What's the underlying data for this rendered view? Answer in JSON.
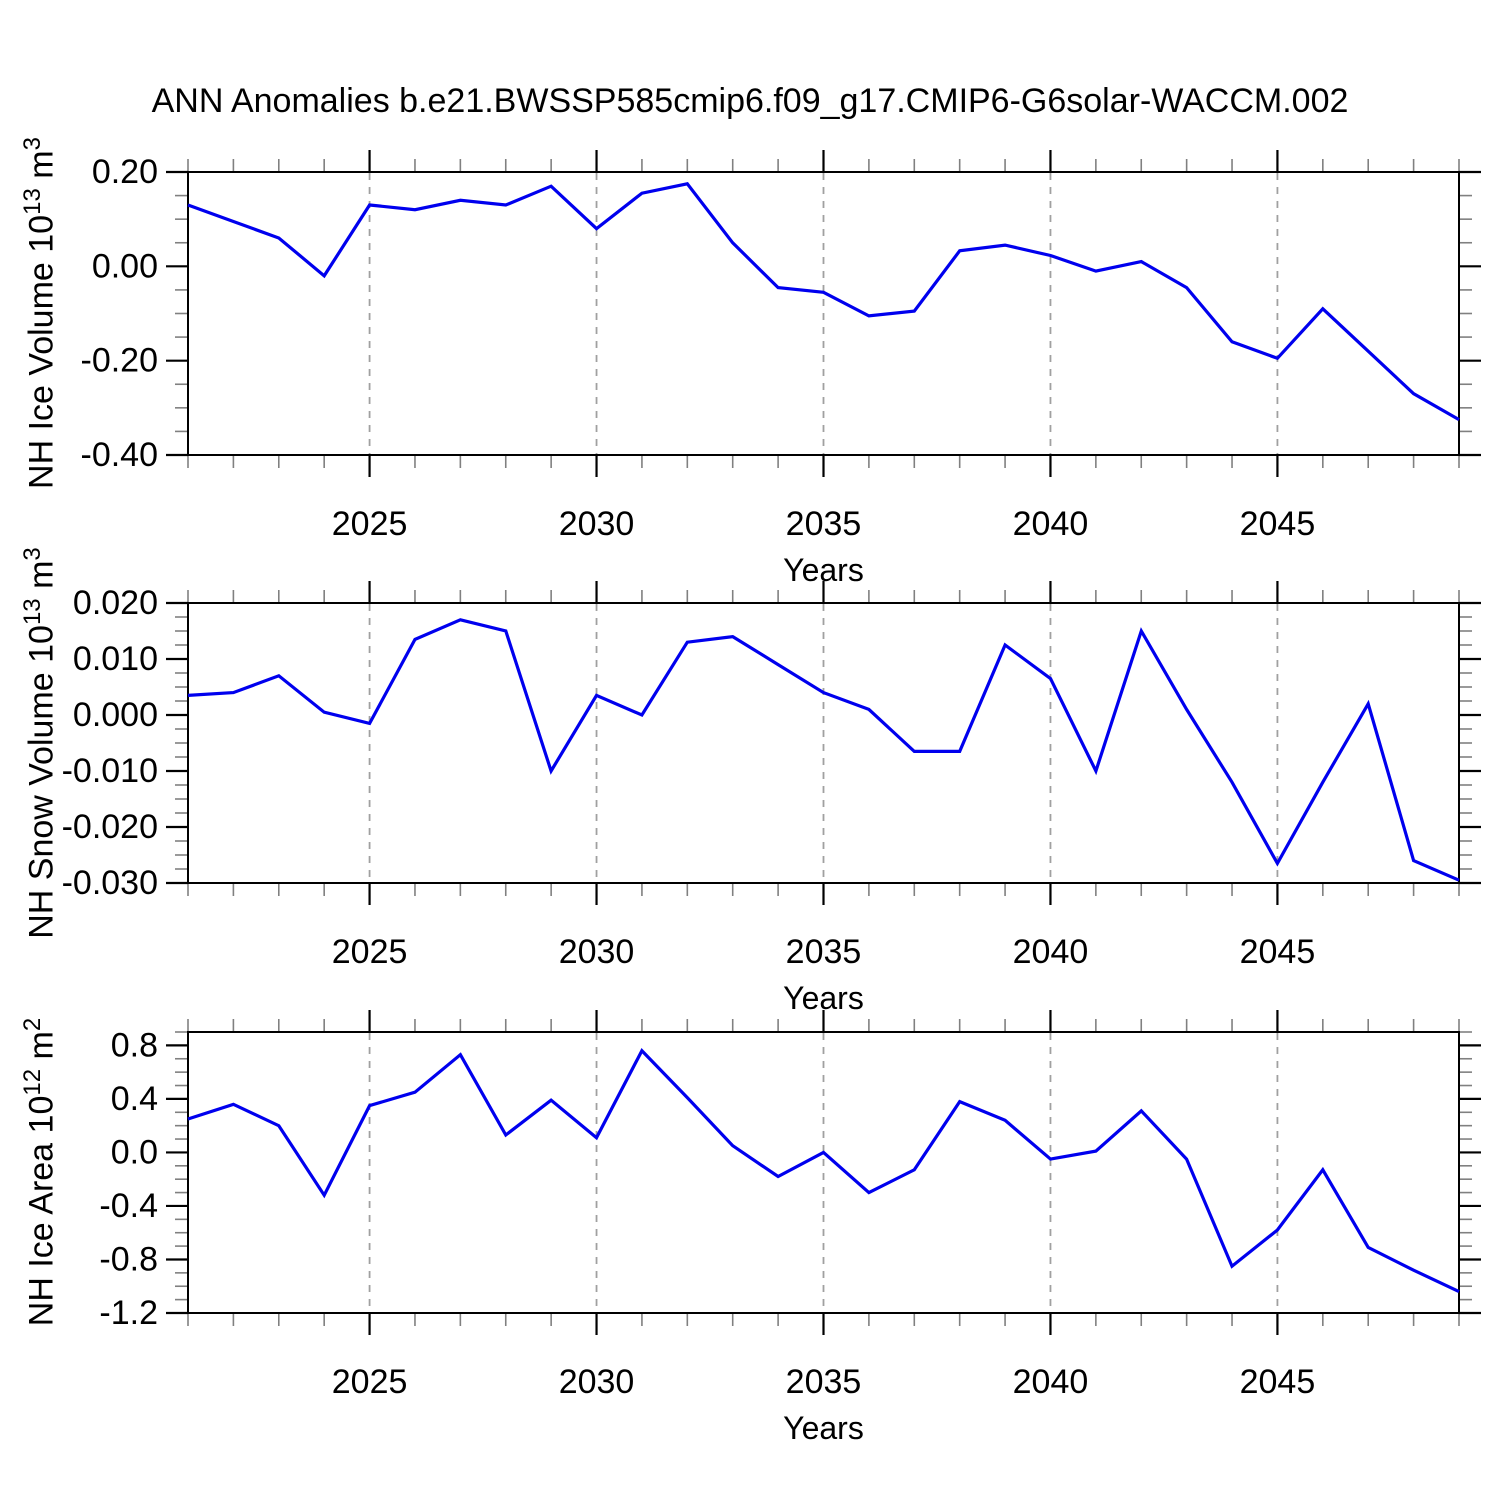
{
  "title": "ANN Anomalies b.e21.BWSSP585cmip6.f09_g17.CMIP6-G6solar-WACCM.002",
  "chart_data": {
    "type": "line",
    "title": "ANN Anomalies b.e21.BWSSP585cmip6.f09_g17.CMIP6-G6solar-WACCM.002",
    "xlabel": "Years",
    "x": [
      2021,
      2022,
      2023,
      2024,
      2025,
      2026,
      2027,
      2028,
      2029,
      2030,
      2031,
      2032,
      2033,
      2034,
      2035,
      2036,
      2037,
      2038,
      2039,
      2040,
      2041,
      2042,
      2043,
      2044,
      2045,
      2046,
      2047,
      2048,
      2049
    ],
    "x_major_ticks": [
      2025,
      2030,
      2035,
      2040,
      2045
    ],
    "xlim": [
      2021,
      2049
    ],
    "grid": "vertical dashed gridlines at major x ticks",
    "legend": "none",
    "line_color": "#0000ee",
    "grid_color": "#a0a0a0",
    "frame_color": "#000000",
    "minor_tick_color": "#808080",
    "panels": [
      {
        "name": "nh-ice-volume",
        "ylabel": "NH Ice Volume 10^13 m^3",
        "ylabel_parts": {
          "base": "NH Ice Volume 10",
          "exp": "13",
          "unit": " m",
          "unit_exp": "3"
        },
        "ylim": [
          -0.4,
          0.2
        ],
        "y_minor_step": 0.05,
        "y_major_ticks": [
          {
            "value": 0.2,
            "label": "0.20"
          },
          {
            "value": 0.0,
            "label": "0.00"
          },
          {
            "value": -0.2,
            "label": "-0.20"
          },
          {
            "value": -0.4,
            "label": "-0.40"
          }
        ],
        "values": [
          0.13,
          0.095,
          0.06,
          -0.02,
          0.13,
          0.12,
          0.14,
          0.13,
          0.17,
          0.08,
          0.155,
          0.175,
          0.05,
          -0.045,
          -0.055,
          -0.105,
          -0.095,
          0.033,
          0.045,
          0.023,
          -0.01,
          0.01,
          -0.045,
          -0.16,
          -0.195,
          -0.09,
          -0.18,
          -0.27,
          -0.325
        ]
      },
      {
        "name": "nh-snow-volume",
        "ylabel": "NH Snow Volume 10^13 m^3",
        "ylabel_parts": {
          "base": "NH Snow Volume 10",
          "exp": "13",
          "unit": " m",
          "unit_exp": "3"
        },
        "ylim": [
          -0.03,
          0.02
        ],
        "y_minor_step": 0.0025,
        "y_major_ticks": [
          {
            "value": 0.02,
            "label": "0.020"
          },
          {
            "value": 0.01,
            "label": "0.010"
          },
          {
            "value": 0.0,
            "label": "0.000"
          },
          {
            "value": -0.01,
            "label": "-0.010"
          },
          {
            "value": -0.02,
            "label": "-0.020"
          },
          {
            "value": -0.03,
            "label": "-0.030"
          }
        ],
        "values": [
          0.0035,
          0.004,
          0.007,
          0.0005,
          -0.0015,
          0.0135,
          0.017,
          0.015,
          -0.01,
          0.0035,
          0.0,
          0.013,
          0.014,
          0.009,
          0.004,
          0.001,
          -0.0065,
          -0.0065,
          0.0125,
          0.0065,
          -0.01,
          0.015,
          0.001,
          -0.012,
          -0.0265,
          -0.012,
          0.002,
          -0.026,
          -0.0295
        ]
      },
      {
        "name": "nh-ice-area",
        "ylabel": "NH Ice Area 10^12 m^2",
        "ylabel_parts": {
          "base": "NH Ice Area 10",
          "exp": "12",
          "unit": " m",
          "unit_exp": "2"
        },
        "ylim": [
          -1.2,
          0.9
        ],
        "y_minor_step": 0.1,
        "y_major_ticks": [
          {
            "value": 0.8,
            "label": "0.8"
          },
          {
            "value": 0.4,
            "label": "0.4"
          },
          {
            "value": 0.0,
            "label": "0.0"
          },
          {
            "value": -0.4,
            "label": "-0.4"
          },
          {
            "value": -0.8,
            "label": "-0.8"
          },
          {
            "value": -1.2,
            "label": "-1.2"
          }
        ],
        "values": [
          0.25,
          0.36,
          0.2,
          -0.32,
          0.35,
          0.45,
          0.73,
          0.13,
          0.39,
          0.11,
          0.76,
          0.41,
          0.05,
          -0.18,
          0.0,
          -0.3,
          -0.13,
          0.38,
          0.24,
          -0.05,
          0.01,
          0.31,
          -0.05,
          -0.85,
          -0.58,
          -0.13,
          -0.71,
          -0.88,
          -1.04
        ]
      }
    ]
  }
}
